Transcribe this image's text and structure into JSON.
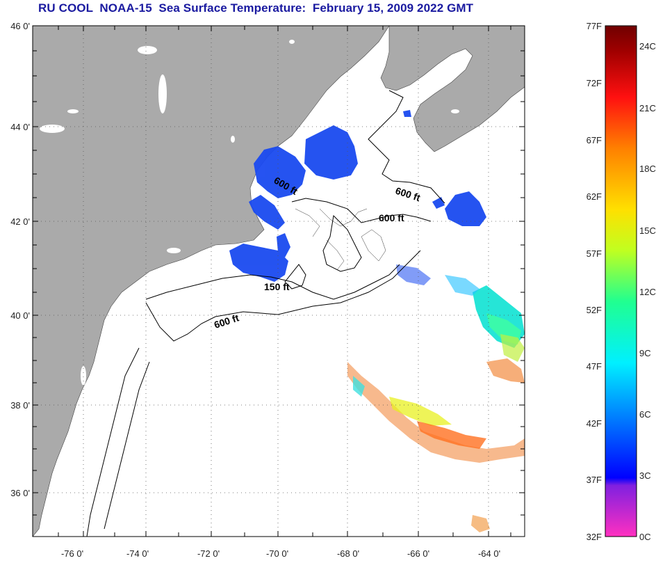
{
  "title": "RU COOL  NOAA-15  Sea Surface Temperature:  February 15, 2009 2022 GMT",
  "map": {
    "lat_labels": [
      "46 0'",
      "44 0'",
      "42 0'",
      "40 0'",
      "38 0'",
      "36 0'"
    ],
    "lon_labels": [
      "-76 0'",
      "-74 0'",
      "-72 0'",
      "-70 0'",
      "-68 0'",
      "-66 0'",
      "-64 0'"
    ],
    "contour_labels": [
      {
        "text": "600 ft",
        "key": "gom-west"
      },
      {
        "text": "600 ft",
        "key": "gom-east"
      },
      {
        "text": "600 ft",
        "key": "gom-central"
      },
      {
        "text": "150 ft",
        "key": "shoals"
      },
      {
        "text": "600 ft",
        "key": "shelf"
      }
    ]
  },
  "colorbar": {
    "fahrenheit": [
      "77F",
      "72F",
      "67F",
      "62F",
      "57F",
      "52F",
      "47F",
      "42F",
      "37F",
      "32F"
    ],
    "celsius": [
      "24C",
      "21C",
      "18C",
      "15C",
      "12C",
      "9C",
      "6C",
      "3C",
      "0C"
    ],
    "colors": [
      "#ff30c0",
      "#8020e0",
      "#0000ff",
      "#0090ff",
      "#00f0ff",
      "#20ff90",
      "#c0ff20",
      "#ffe000",
      "#ff8000",
      "#ff1010",
      "#a00000",
      "#700000"
    ]
  },
  "colors": {
    "land": "#aaaaaa",
    "ocean": "#ffffff",
    "title": "#1a1aa0",
    "cold_sst": "#1a4af0"
  }
}
